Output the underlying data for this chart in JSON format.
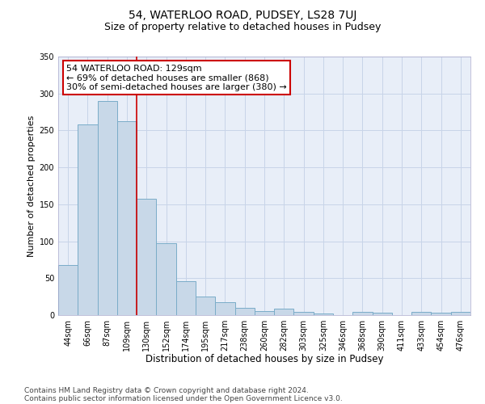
{
  "title_line1": "54, WATERLOO ROAD, PUDSEY, LS28 7UJ",
  "title_line2": "Size of property relative to detached houses in Pudsey",
  "xlabel": "Distribution of detached houses by size in Pudsey",
  "ylabel": "Number of detached properties",
  "categories": [
    "44sqm",
    "66sqm",
    "87sqm",
    "109sqm",
    "130sqm",
    "152sqm",
    "174sqm",
    "195sqm",
    "217sqm",
    "238sqm",
    "260sqm",
    "282sqm",
    "303sqm",
    "325sqm",
    "346sqm",
    "368sqm",
    "390sqm",
    "411sqm",
    "433sqm",
    "454sqm",
    "476sqm"
  ],
  "values": [
    68,
    258,
    290,
    262,
    157,
    97,
    46,
    25,
    18,
    10,
    5,
    9,
    4,
    2,
    0,
    4,
    3,
    0,
    4,
    3,
    4
  ],
  "bar_color": "#c8d8e8",
  "bar_edge_color": "#7aacc8",
  "vline_x": 3.5,
  "vline_color": "#cc0000",
  "annotation_text": "54 WATERLOO ROAD: 129sqm\n← 69% of detached houses are smaller (868)\n30% of semi-detached houses are larger (380) →",
  "annotation_box_color": "#ffffff",
  "annotation_box_edge_color": "#cc0000",
  "ylim": [
    0,
    350
  ],
  "yticks": [
    0,
    50,
    100,
    150,
    200,
    250,
    300,
    350
  ],
  "grid_color": "#c8d4e8",
  "bg_color": "#e8eef8",
  "footer_line1": "Contains HM Land Registry data © Crown copyright and database right 2024.",
  "footer_line2": "Contains public sector information licensed under the Open Government Licence v3.0.",
  "title_fontsize": 10,
  "subtitle_fontsize": 9,
  "xlabel_fontsize": 8.5,
  "ylabel_fontsize": 8,
  "tick_fontsize": 7,
  "annotation_fontsize": 8,
  "footer_fontsize": 6.5
}
